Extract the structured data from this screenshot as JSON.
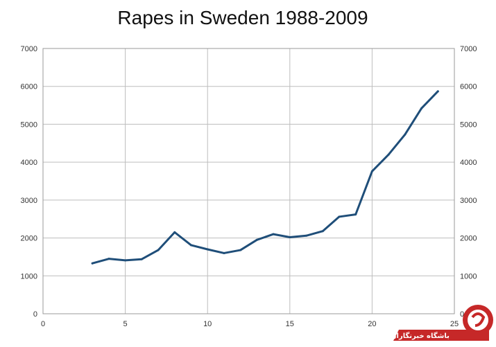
{
  "chart_data": {
    "type": "line",
    "title": "Rapes in Sweden 1988-2009",
    "xlabel": "",
    "ylabel": "",
    "xlim": [
      0,
      25
    ],
    "ylim": [
      0,
      7000
    ],
    "x_ticks": [
      0,
      5,
      10,
      15,
      20,
      25
    ],
    "y_ticks": [
      0,
      1000,
      2000,
      3000,
      4000,
      5000,
      6000,
      7000
    ],
    "grid": true,
    "legend": "none",
    "series": [
      {
        "color": "#1f4e79",
        "x": [
          3,
          4,
          5,
          6,
          7,
          8,
          9,
          10,
          11,
          12,
          13,
          14,
          15,
          16,
          17,
          18,
          19,
          20,
          21,
          22,
          23,
          24
        ],
        "y": [
          1330,
          1450,
          1410,
          1440,
          1680,
          2150,
          1810,
          1700,
          1600,
          1680,
          1950,
          2100,
          2020,
          2060,
          2180,
          2560,
          2620,
          3760,
          4200,
          4730,
          5420,
          5870
        ]
      }
    ]
  },
  "watermark": {
    "text": "باشگاه خبرنگاران",
    "color": "#c62828"
  }
}
